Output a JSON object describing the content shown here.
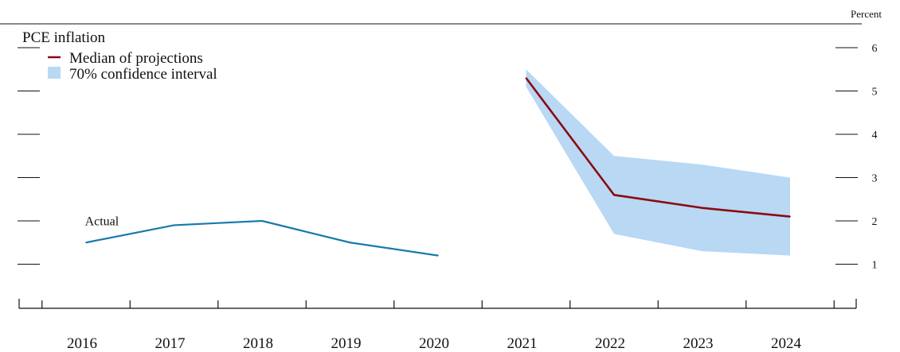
{
  "chart_data": {
    "type": "line",
    "title": "PCE inflation",
    "ylabel": "Percent",
    "ylim": [
      0,
      6
    ],
    "yticks": [
      1,
      2,
      3,
      4,
      5,
      6
    ],
    "x_tick_labels": [
      "2016",
      "2017",
      "2018",
      "2019",
      "2020",
      "2021",
      "2022",
      "2023",
      "2024"
    ],
    "grid": false,
    "legend_position": "top-left",
    "series": [
      {
        "name": "Median of projections",
        "color": "#8b0a12",
        "x": [
          2021,
          2022,
          2023,
          2024
        ],
        "values": [
          5.3,
          2.6,
          2.3,
          2.1
        ]
      },
      {
        "name": "Actual",
        "color": "#1a7aab",
        "x": [
          2016,
          2017,
          2018,
          2019,
          2020
        ],
        "values": [
          1.5,
          1.9,
          2.0,
          1.5,
          1.2
        ]
      }
    ],
    "band": {
      "name": "70% confidence interval",
      "color": "#b8d8f4",
      "x": [
        2021,
        2022,
        2023,
        2024
      ],
      "lower": [
        5.1,
        1.7,
        1.3,
        1.2
      ],
      "upper": [
        5.5,
        3.5,
        3.3,
        3.0
      ]
    },
    "annotations": [
      {
        "text": "Actual",
        "x": 2016.15,
        "y": 1.9
      }
    ]
  }
}
